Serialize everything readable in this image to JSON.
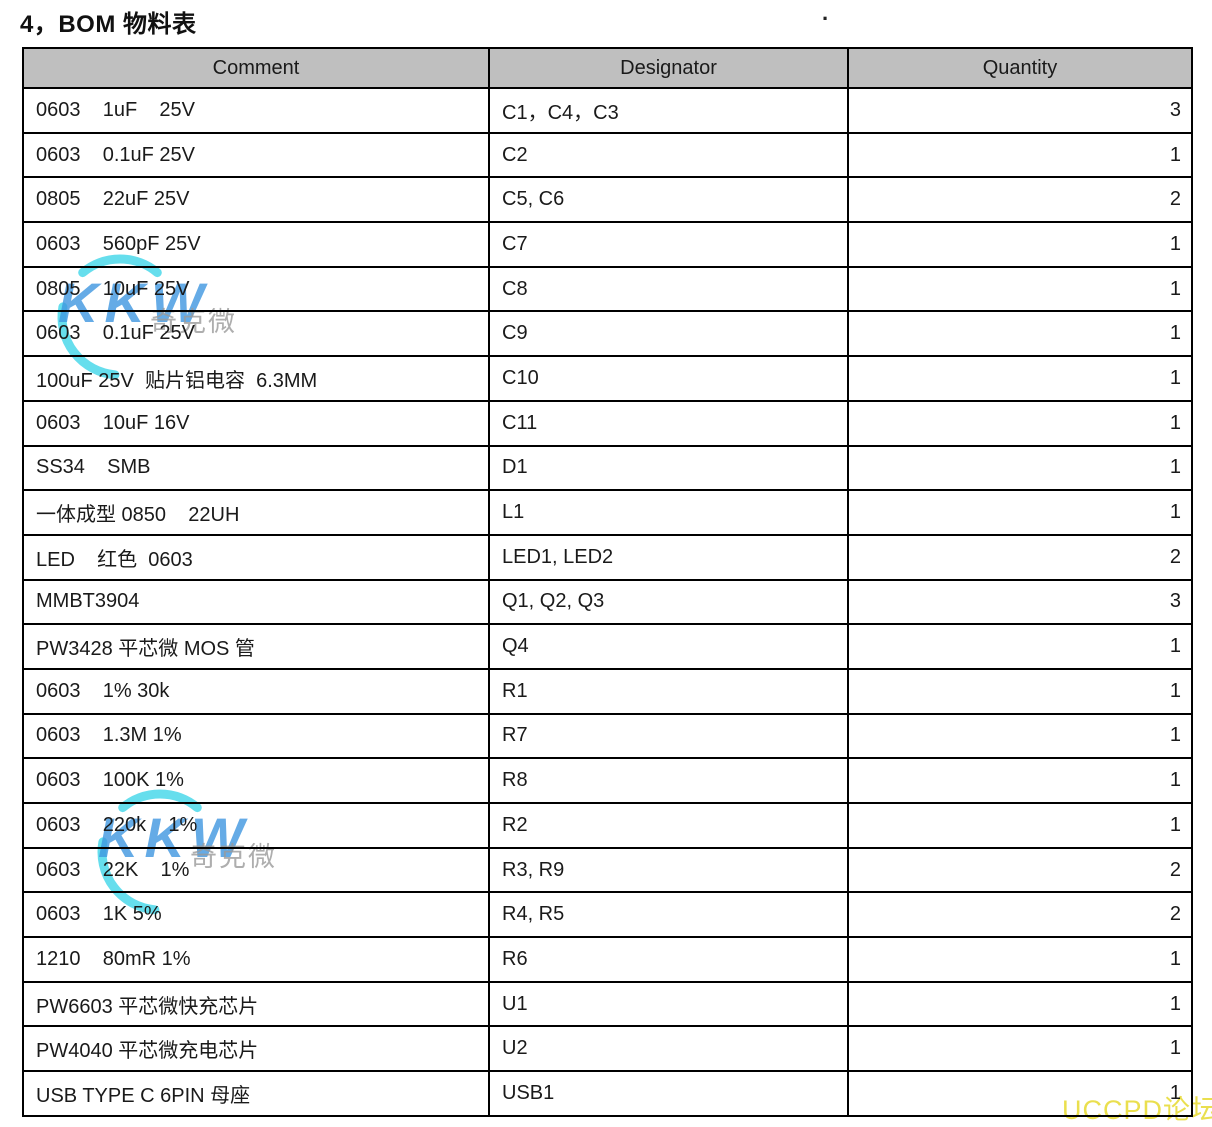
{
  "title": "4，BOM 物料表",
  "stray_dot": ".",
  "table": {
    "header_bg": "#bfbfbf",
    "border_color": "#000000",
    "headers": [
      "Comment",
      "Designator",
      "Quantity"
    ],
    "rows": [
      {
        "comment": "0603    1uF    25V",
        "designator": "C1，C4，C3",
        "quantity": "3"
      },
      {
        "comment": "0603    0.1uF 25V",
        "designator": "C2",
        "quantity": "1"
      },
      {
        "comment": "0805    22uF 25V",
        "designator": "C5, C6",
        "quantity": "2"
      },
      {
        "comment": "0603    560pF 25V",
        "designator": "C7",
        "quantity": "1"
      },
      {
        "comment": "0805    10uF 25V",
        "designator": "C8",
        "quantity": "1"
      },
      {
        "comment": "0603    0.1uF 25V",
        "designator": "C9",
        "quantity": "1"
      },
      {
        "comment": "100uF 25V  贴片铝电容  6.3MM",
        "designator": "C10",
        "quantity": "1"
      },
      {
        "comment": "0603    10uF 16V",
        "designator": "C11",
        "quantity": "1"
      },
      {
        "comment": "SS34    SMB",
        "designator": "D1",
        "quantity": "1"
      },
      {
        "comment": "一体成型 0850    22UH",
        "designator": "L1",
        "quantity": "1"
      },
      {
        "comment": "LED    红色  0603",
        "designator": "LED1, LED2",
        "quantity": "2"
      },
      {
        "comment": "MMBT3904",
        "designator": "Q1, Q2, Q3",
        "quantity": "3"
      },
      {
        "comment": "PW3428 平芯微 MOS 管",
        "designator": "Q4",
        "quantity": "1"
      },
      {
        "comment": "0603    1% 30k",
        "designator": "R1",
        "quantity": "1"
      },
      {
        "comment": "0603    1.3M 1%",
        "designator": "R7",
        "quantity": "1"
      },
      {
        "comment": "0603    100K 1%",
        "designator": "R8",
        "quantity": "1"
      },
      {
        "comment": "0603    220k    1%",
        "designator": "R2",
        "quantity": "1"
      },
      {
        "comment": "0603    22K    1%",
        "designator": "R3, R9",
        "quantity": "2"
      },
      {
        "comment": "0603    1K 5%",
        "designator": "R4, R5",
        "quantity": "2"
      },
      {
        "comment": "1210    80mR 1%",
        "designator": "R6",
        "quantity": "1"
      },
      {
        "comment": "PW6603 平芯微快充芯片",
        "designator": "U1",
        "quantity": "1"
      },
      {
        "comment": "PW4040 平芯微充电芯片",
        "designator": "U2",
        "quantity": "1"
      },
      {
        "comment": "USB TYPE C 6PIN 母座",
        "designator": "USB1",
        "quantity": "1"
      }
    ]
  },
  "watermarks": {
    "logo_text": "KKW",
    "logo_subtext": "奇克微",
    "logo_color": "#3f97e0",
    "arc_color": "#40d6e8",
    "subtext_color": "#9a9a9a",
    "forum_text": "UCCPD论坛",
    "forum_color": "#e9de45"
  }
}
